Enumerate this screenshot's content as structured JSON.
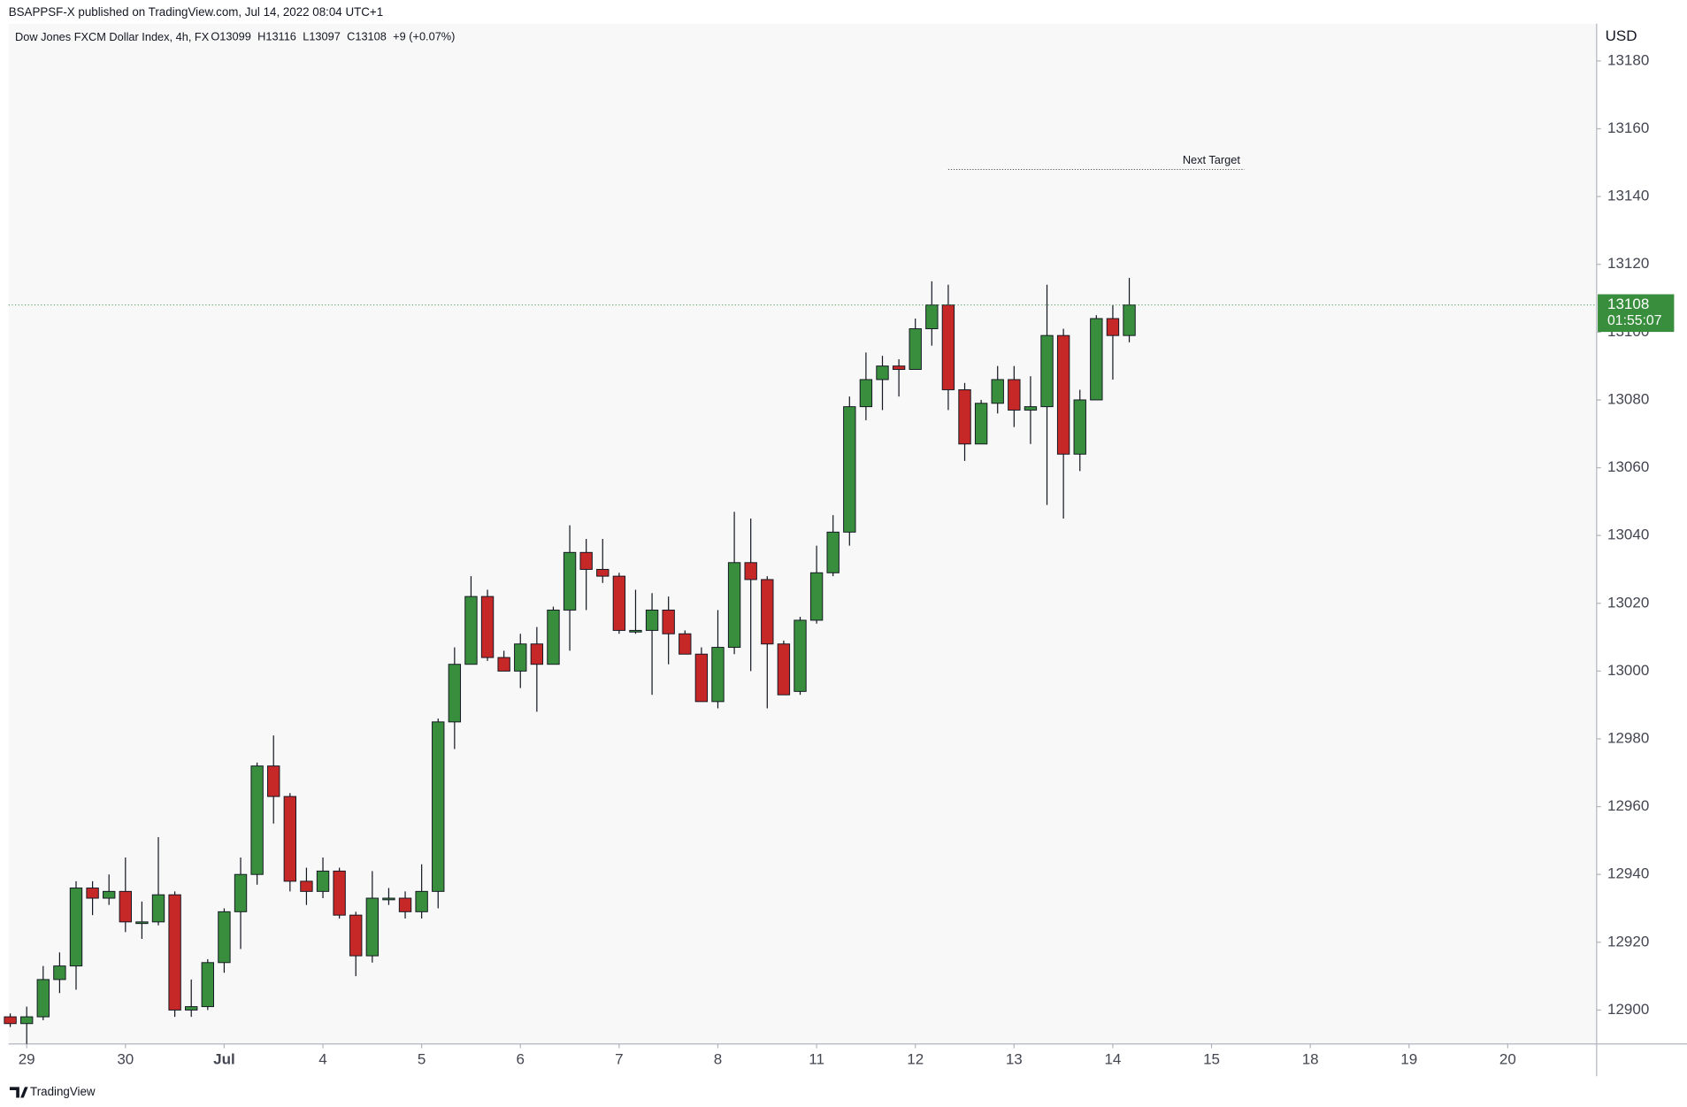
{
  "header": "BSAPPSF-X published on TradingView.com, Jul 14, 2022 08:04 UTC+1",
  "footer": "TradingView",
  "chart_data": {
    "type": "candlestick",
    "title": "Dow Jones FXCM Dollar Index, 4h, FX",
    "ohlc_labels": [
      "O",
      "H",
      "L",
      "C"
    ],
    "change_label": "+9 (+0.07%)",
    "currency": "USD",
    "countdown": "01:55:07",
    "up_color": "#388e3c",
    "down_color": "#c62828",
    "series": [
      {
        "name": "Dow Jones FXCM Dollar Index",
        "open": [
          12898,
          12896,
          12898,
          12909,
          12913,
          12936,
          12933,
          12935,
          12926,
          12926,
          12934,
          12900,
          12901,
          12914,
          12929,
          12940,
          12972,
          12963,
          12938,
          12935,
          12941,
          12928,
          12916,
          12933,
          12933,
          12929,
          12935,
          12985,
          13002,
          13022,
          13004,
          13000,
          13008,
          13002,
          13018,
          13035,
          13030,
          13028,
          13012,
          13012,
          13018,
          13011,
          13005,
          12991,
          13007,
          13032,
          13027,
          13008,
          12994,
          13015,
          13029,
          13041,
          13078,
          13086,
          13090,
          13089,
          13101,
          13108,
          13083,
          13067,
          13079,
          13086,
          13077,
          13078,
          13099,
          13064,
          13080,
          13104,
          13099
        ],
        "high": [
          12899,
          12901,
          12913,
          12917,
          12938,
          12938,
          12940,
          12945,
          12932,
          12951,
          12935,
          12909,
          12915,
          12930,
          12945,
          12973,
          12981,
          12964,
          12942,
          12945,
          12942,
          12929,
          12941,
          12936,
          12935,
          12943,
          12986,
          13007,
          13028,
          13024,
          13006,
          13011,
          13013,
          13019,
          13043,
          13039,
          13039,
          13029,
          13024,
          13023,
          13022,
          13012,
          13007,
          13018,
          13047,
          13045,
          13028,
          13009,
          13016,
          13037,
          13046,
          13081,
          13094,
          13093,
          13092,
          13104,
          13115,
          13114,
          13085,
          13080,
          13090,
          13090,
          13087,
          13114,
          13101,
          13083,
          13105,
          13108,
          13116
        ],
        "low": [
          12895,
          12890,
          12897,
          12905,
          12906,
          12928,
          12931,
          12923,
          12921,
          12925,
          12898,
          12898,
          12900,
          12911,
          12918,
          12937,
          12955,
          12935,
          12931,
          12933,
          12927,
          12910,
          12914,
          12931,
          12927,
          12927,
          12930,
          12977,
          13002,
          13003,
          13000,
          12995,
          12988,
          13002,
          13006,
          13018,
          13026,
          13011,
          13011,
          12993,
          13002,
          13005,
          12991,
          12989,
          13005,
          13000,
          12989,
          12993,
          12993,
          13014,
          13028,
          13037,
          13074,
          13077,
          13081,
          13089,
          13096,
          13077,
          13062,
          13067,
          13076,
          13072,
          13067,
          13049,
          13045,
          13059,
          13080,
          13086,
          13097
        ],
        "close": [
          12896,
          12898,
          12909,
          12913,
          12936,
          12933,
          12935,
          12926,
          12926,
          12934,
          12900,
          12901,
          12914,
          12929,
          12940,
          12972,
          12963,
          12938,
          12935,
          12941,
          12928,
          12916,
          12933,
          12933,
          12929,
          12935,
          12985,
          13002,
          13022,
          13004,
          13000,
          13008,
          13002,
          13018,
          13035,
          13030,
          13028,
          13012,
          13012,
          13018,
          13011,
          13005,
          12991,
          13007,
          13032,
          13027,
          13008,
          12993,
          13015,
          13029,
          13041,
          13078,
          13086,
          13090,
          13089,
          13101,
          13108,
          13083,
          13067,
          13079,
          13086,
          13077,
          13078,
          13099,
          13064,
          13080,
          13104,
          13099,
          13108
        ]
      }
    ],
    "xlim": [
      -0.1,
      96.4
    ],
    "xticks": [
      {
        "value": 1,
        "label": "29"
      },
      {
        "value": 7,
        "label": "30"
      },
      {
        "value": 13,
        "label": "Jul"
      },
      {
        "value": 19,
        "label": "4"
      },
      {
        "value": 25,
        "label": "5"
      },
      {
        "value": 31,
        "label": "6"
      },
      {
        "value": 37,
        "label": "7"
      },
      {
        "value": 43,
        "label": "8"
      },
      {
        "value": 49,
        "label": "11"
      },
      {
        "value": 55,
        "label": "12"
      },
      {
        "value": 61,
        "label": "13"
      },
      {
        "value": 67,
        "label": "14"
      },
      {
        "value": 73,
        "label": "15"
      },
      {
        "value": 79,
        "label": "18"
      },
      {
        "value": 85,
        "label": "19"
      },
      {
        "value": 91,
        "label": "20"
      }
    ],
    "ylim": [
      12890,
      13191
    ],
    "yticks": [
      12900,
      12920,
      12940,
      12960,
      12980,
      13000,
      13020,
      13040,
      13060,
      13080,
      13100,
      13120,
      13140,
      13160,
      13180
    ],
    "annotations": [
      {
        "text": "Next Target",
        "value": 13148,
        "x": [
          57,
          75
        ]
      }
    ]
  }
}
